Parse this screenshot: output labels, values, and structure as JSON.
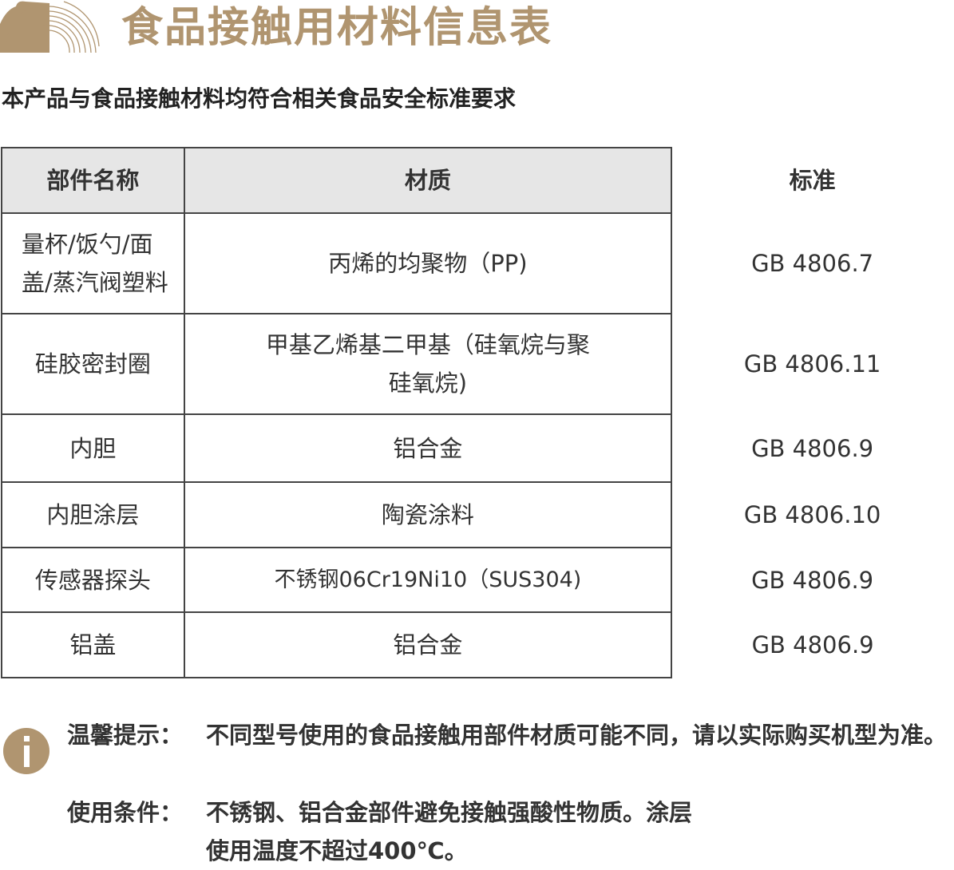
{
  "header": {
    "title": "食品接触用材料信息表",
    "subtitle": "本产品与食品接触材料均符合相关食品安全标准要求",
    "brand_color": "#b09570"
  },
  "table": {
    "headers": [
      "部件名称",
      "材质",
      "标准"
    ],
    "rows": [
      {
        "part": "量杯/饭勺/面盖/蒸汽阀塑料",
        "material": "丙烯的均聚物（PP)",
        "standard": "GB 4806.7"
      },
      {
        "part": "硅胶密封圈",
        "material": "甲基乙烯基二甲基（硅氧烷与聚硅氧烷)",
        "standard": "GB 4806.11"
      },
      {
        "part": "内胆",
        "material": "铝合金",
        "standard": "GB 4806.9"
      },
      {
        "part": "内胆涂层",
        "material": "陶瓷涂料",
        "standard": "GB 4806.10"
      },
      {
        "part": "传感器探头",
        "material": "不锈钢06Cr19Ni10（SUS304)",
        "standard": "GB 4806.9"
      },
      {
        "part": "铝盖",
        "material": "铝合金",
        "standard": "GB 4806.9"
      }
    ]
  },
  "notes": [
    {
      "label": "温馨提示：",
      "text": "不同型号使用的食品接触用部件材质可能不同，请以实际购买机型为准。"
    },
    {
      "label": "使用条件：",
      "text": "不锈钢、铝合金部件避免接触强酸性物质。涂层使用温度不超过400℃。"
    }
  ],
  "icons": {
    "logo": "brand-logo",
    "info": "info-icon"
  }
}
